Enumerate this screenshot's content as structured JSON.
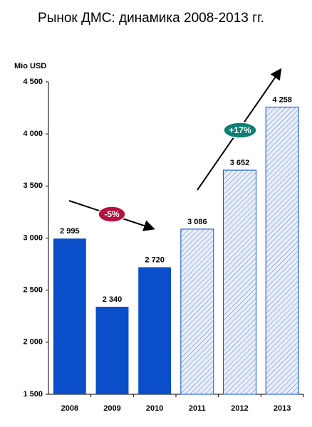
{
  "chart_data": {
    "type": "bar",
    "title": "Рынок ДМС: динамика 2008-2013 гг.",
    "y_label": "Mio USD",
    "categories": [
      "2008",
      "2009",
      "2010",
      "2011",
      "2012",
      "2013"
    ],
    "values": [
      2995,
      2340,
      2720,
      3086,
      3652,
      4258
    ],
    "value_labels": [
      "2 995",
      "2 340",
      "2 720",
      "3 086",
      "3 652",
      "4 258"
    ],
    "colors": [
      "#0a4fc9",
      "#0a4fc9",
      "#0a4fc9",
      "#0a4fc9",
      "#0a4fc9",
      "#0a4fc9"
    ],
    "hatched": [
      false,
      false,
      false,
      true,
      true,
      true
    ],
    "ylim": [
      1500,
      4500
    ],
    "yticks": [
      {
        "value": 1500,
        "label": "1 500"
      },
      {
        "value": 2000,
        "label": "2 000"
      },
      {
        "value": 2500,
        "label": "2 500"
      },
      {
        "value": 3000,
        "label": "3 000"
      },
      {
        "value": 3500,
        "label": "3 500"
      },
      {
        "value": 4000,
        "label": "4 000"
      },
      {
        "value": 4500,
        "label": "4 500"
      }
    ],
    "annotations": [
      "-5%",
      "+17%"
    ]
  }
}
